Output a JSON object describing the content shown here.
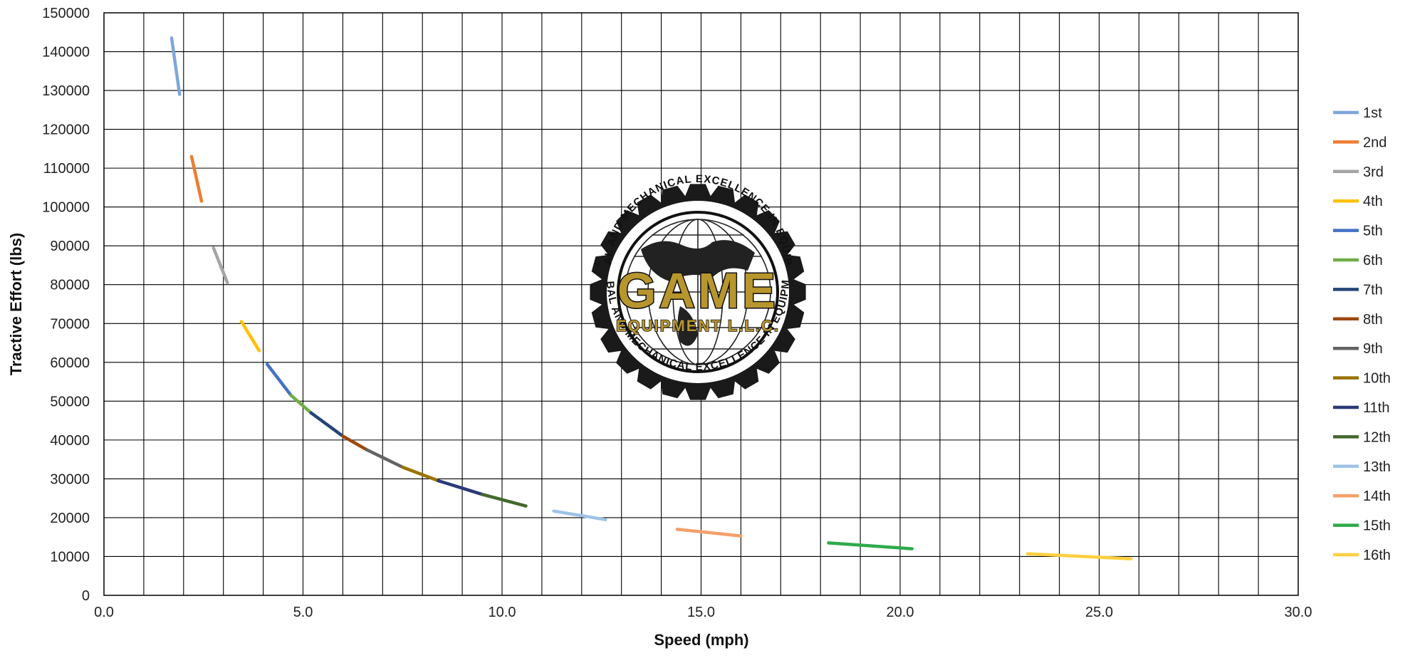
{
  "chart_data": {
    "type": "line",
    "xlabel": "Speed (mph)",
    "ylabel": "Tractive Effort (lbs)",
    "xlim": [
      0,
      30
    ],
    "ylim": [
      0,
      150000
    ],
    "x_ticks": [
      "0.0",
      "5.0",
      "10.0",
      "15.0",
      "20.0",
      "25.0",
      "30.0"
    ],
    "y_ticks": [
      "0",
      "10000",
      "20000",
      "30000",
      "40000",
      "50000",
      "60000",
      "70000",
      "80000",
      "90000",
      "100000",
      "110000",
      "120000",
      "130000",
      "140000",
      "150000"
    ],
    "grid": true,
    "legend_position": "right",
    "series": [
      {
        "name": "1st",
        "color": "#7ea6d8",
        "points": [
          [
            1.7,
            143500
          ],
          [
            1.9,
            129000
          ]
        ]
      },
      {
        "name": "2nd",
        "color": "#ed7d31",
        "points": [
          [
            2.2,
            113000
          ],
          [
            2.45,
            101500
          ]
        ]
      },
      {
        "name": "3rd",
        "color": "#a5a5a5",
        "points": [
          [
            2.75,
            89500
          ],
          [
            3.1,
            80500
          ]
        ]
      },
      {
        "name": "4th",
        "color": "#ffc000",
        "points": [
          [
            3.45,
            70500
          ],
          [
            3.9,
            63000
          ]
        ]
      },
      {
        "name": "5th",
        "color": "#4472c4",
        "points": [
          [
            4.1,
            59500
          ],
          [
            4.7,
            51500
          ]
        ]
      },
      {
        "name": "6th",
        "color": "#70ad47",
        "points": [
          [
            4.7,
            51500
          ],
          [
            5.2,
            47000
          ]
        ]
      },
      {
        "name": "7th",
        "color": "#264478",
        "points": [
          [
            5.2,
            47000
          ],
          [
            6.0,
            41000
          ]
        ]
      },
      {
        "name": "8th",
        "color": "#9e480e",
        "points": [
          [
            6.0,
            41000
          ],
          [
            6.6,
            37500
          ]
        ]
      },
      {
        "name": "9th",
        "color": "#636363",
        "points": [
          [
            6.6,
            37500
          ],
          [
            7.5,
            33000
          ]
        ]
      },
      {
        "name": "10th",
        "color": "#997300",
        "points": [
          [
            7.5,
            33000
          ],
          [
            8.4,
            29500
          ]
        ]
      },
      {
        "name": "11th",
        "color": "#2a3a7a",
        "points": [
          [
            8.4,
            29500
          ],
          [
            9.5,
            26000
          ]
        ]
      },
      {
        "name": "12th",
        "color": "#43682b",
        "points": [
          [
            9.5,
            26000
          ],
          [
            10.6,
            23000
          ]
        ]
      },
      {
        "name": "13th",
        "color": "#9dc3e6",
        "points": [
          [
            11.3,
            21700
          ],
          [
            12.6,
            19500
          ]
        ]
      },
      {
        "name": "14th",
        "color": "#f4a06a",
        "points": [
          [
            14.4,
            17000
          ],
          [
            16.0,
            15300
          ]
        ]
      },
      {
        "name": "15th",
        "color": "#2eaa4a",
        "points": [
          [
            18.2,
            13500
          ],
          [
            20.3,
            12000
          ]
        ]
      },
      {
        "name": "16th",
        "color": "#ffd040",
        "points": [
          [
            23.2,
            10700
          ],
          [
            25.8,
            9400
          ]
        ]
      }
    ]
  },
  "logo": {
    "name": "GAME",
    "subname": "EQUIPMENT L.L.C.",
    "ring_text": "GLOBAL AND MECHANICAL EXCELLENCE IN EQUIPMENT"
  }
}
